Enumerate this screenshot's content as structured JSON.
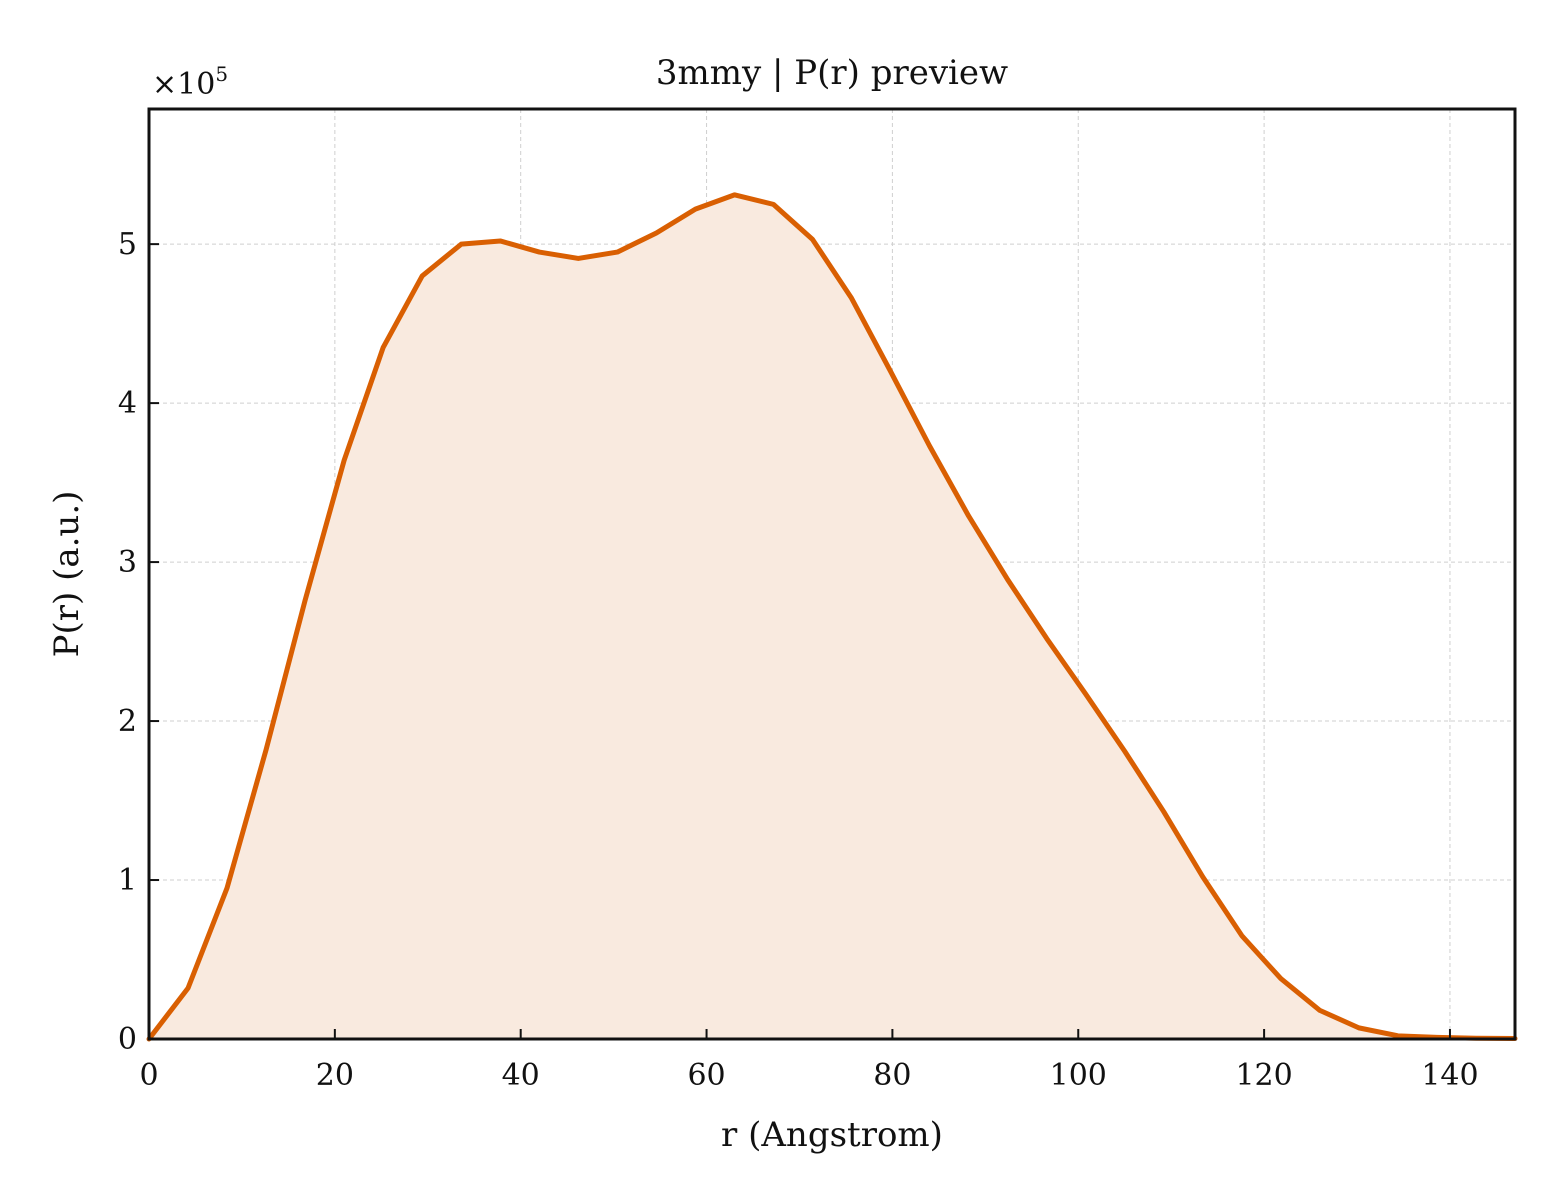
{
  "chart_data": {
    "type": "area",
    "title": "3mmy | P(r) preview",
    "xlabel": "r (Angstrom)",
    "ylabel": "P(r) (a.u.)",
    "y_scale_prefix": "×10",
    "y_scale_exponent": "5",
    "xlim": [
      0,
      147
    ],
    "ylim": [
      0,
      5.85
    ],
    "xticks": [
      0,
      20,
      40,
      60,
      80,
      100,
      120,
      140
    ],
    "yticks": [
      0,
      1,
      2,
      3,
      4,
      5
    ],
    "grid": true,
    "color": "#d95f02",
    "fill_color": "#f9eadf",
    "series": [
      {
        "x": [
          0,
          4.2,
          8.4,
          12.6,
          16.8,
          21.0,
          25.2,
          29.4,
          33.6,
          37.8,
          42.0,
          46.2,
          50.4,
          54.6,
          58.8,
          63.0,
          67.2,
          71.4,
          75.6,
          79.8,
          84.0,
          88.2,
          92.4,
          96.6,
          100.8,
          105.0,
          109.2,
          113.4,
          117.6,
          121.8,
          126.0,
          130.2,
          134.4,
          138.6,
          142.8,
          147.0
        ],
        "values": [
          0,
          0.32,
          0.95,
          1.82,
          2.76,
          3.64,
          4.35,
          4.8,
          5.0,
          5.02,
          4.95,
          4.91,
          4.95,
          5.07,
          5.22,
          5.31,
          5.25,
          5.03,
          4.66,
          4.2,
          3.73,
          3.29,
          2.89,
          2.52,
          2.17,
          1.81,
          1.43,
          1.02,
          0.65,
          0.38,
          0.18,
          0.07,
          0.02,
          0.01,
          0.005,
          0.003
        ]
      }
    ]
  }
}
